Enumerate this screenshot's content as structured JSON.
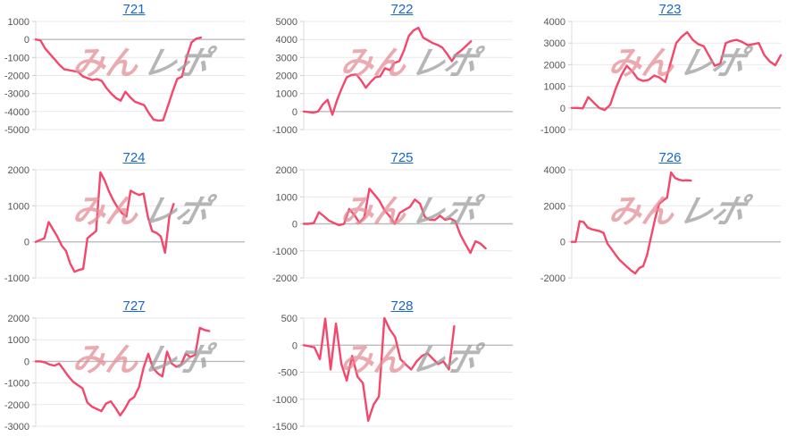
{
  "watermark": {
    "pink": "みん",
    "gray": "レポ"
  },
  "style": {
    "line_color": "#f4476c",
    "link_color": "#1766d1",
    "grid_color": "#e9e9e9",
    "zero_color": "#bbbbbb",
    "axis_color": "#dddddd",
    "tick_color": "#cccccc",
    "label_color": "#555555"
  },
  "chart_data": [
    {
      "type": "line",
      "title": "721",
      "ylim": [
        -5000,
        1000
      ],
      "ytick_step": 1000,
      "ytick_labels": [
        "1000",
        "0",
        "-1000",
        "-2000",
        "-3000",
        "-4000",
        "-5000"
      ],
      "grid": true,
      "legend": "none",
      "span": 0.79,
      "values": [
        0,
        -50,
        -500,
        -800,
        -1100,
        -1400,
        -1650,
        -1700,
        -1750,
        -1800,
        -2050,
        -2150,
        -2250,
        -2200,
        -2300,
        -2700,
        -3000,
        -3250,
        -3400,
        -2900,
        -3200,
        -3450,
        -3550,
        -3650,
        -4100,
        -4450,
        -4500,
        -4480,
        -3700,
        -2900,
        -2180,
        -2070,
        -990,
        -170,
        50,
        100
      ]
    },
    {
      "type": "line",
      "title": "722",
      "ylim": [
        -1000,
        5000
      ],
      "ytick_step": 1000,
      "ytick_labels": [
        "5000",
        "4000",
        "3000",
        "2000",
        "1000",
        "0",
        "-1000"
      ],
      "grid": true,
      "legend": "none",
      "span": 0.8,
      "values": [
        0,
        -30,
        -60,
        0,
        400,
        650,
        -175,
        650,
        1320,
        1900,
        2030,
        2060,
        1730,
        1320,
        1645,
        1900,
        1950,
        2400,
        2300,
        2700,
        2800,
        3400,
        4200,
        4500,
        4650,
        4100,
        3950,
        3800,
        3700,
        3550,
        3200,
        2800,
        3200,
        3400,
        3650,
        3900
      ]
    },
    {
      "type": "line",
      "title": "723",
      "ylim": [
        -1000,
        4000
      ],
      "ytick_step": 1000,
      "ytick_labels": [
        "4000",
        "3000",
        "2000",
        "1000",
        "0",
        "-1000"
      ],
      "grid": true,
      "legend": "none",
      "span": 1.0,
      "values": [
        0,
        0,
        -20,
        500,
        250,
        0,
        -100,
        150,
        900,
        1500,
        1950,
        1700,
        1350,
        1250,
        1300,
        1500,
        1400,
        1200,
        2100,
        3000,
        3300,
        3500,
        3150,
        2950,
        2850,
        2400,
        1950,
        2050,
        3000,
        3100,
        3150,
        3050,
        2900,
        2950,
        3000,
        2450,
        2150,
        1975,
        2440
      ]
    },
    {
      "type": "line",
      "title": "724",
      "ylim": [
        -1000,
        2000
      ],
      "ytick_step": 1000,
      "ytick_labels": [
        "2000",
        "1000",
        "0",
        "-1000"
      ],
      "grid": true,
      "legend": "none",
      "span": 0.66,
      "values": [
        0,
        50,
        100,
        550,
        350,
        150,
        -100,
        -250,
        -600,
        -830,
        -780,
        -750,
        100,
        200,
        300,
        1930,
        1700,
        1400,
        1150,
        950,
        800,
        700,
        1420,
        1350,
        1300,
        1340,
        700,
        300,
        250,
        150,
        -300,
        700,
        1050
      ]
    },
    {
      "type": "line",
      "title": "725",
      "ylim": [
        -2000,
        2000
      ],
      "ytick_step": 1000,
      "ytick_labels": [
        "2000",
        "1000",
        "0",
        "-1000",
        "-2000"
      ],
      "grid": true,
      "legend": "none",
      "span": 0.87,
      "values": [
        0,
        0,
        30,
        430,
        280,
        120,
        30,
        -50,
        0,
        550,
        330,
        50,
        250,
        1300,
        1080,
        850,
        500,
        280,
        0,
        400,
        520,
        620,
        900,
        750,
        250,
        150,
        150,
        300,
        150,
        200,
        100,
        -400,
        -750,
        -1075,
        -645,
        -730,
        -910
      ]
    },
    {
      "type": "line",
      "title": "726",
      "ylim": [
        -2000,
        4000
      ],
      "ytick_step": 2000,
      "ytick_labels": [
        "4000",
        "2000",
        "0",
        "-2000"
      ],
      "grid": true,
      "legend": "none",
      "span": 0.57,
      "values": [
        0,
        0,
        1150,
        1100,
        800,
        700,
        650,
        600,
        500,
        -100,
        -400,
        -700,
        -1000,
        -1200,
        -1400,
        -1600,
        -1750,
        -1450,
        -1350,
        -700,
        300,
        1300,
        2100,
        2300,
        2450,
        3850,
        3550,
        3450,
        3400,
        3420,
        3400
      ]
    },
    {
      "type": "line",
      "title": "727",
      "ylim": [
        -3000,
        2000
      ],
      "ytick_step": 1000,
      "ytick_labels": [
        "2000",
        "1000",
        "0",
        "-1000",
        "-2000",
        "-3000"
      ],
      "grid": true,
      "legend": "none",
      "span": 0.83,
      "values": [
        0,
        0,
        -50,
        -150,
        -200,
        -100,
        -400,
        -700,
        -950,
        -1100,
        -1250,
        -1900,
        -2100,
        -2200,
        -2300,
        -1950,
        -1850,
        -2150,
        -2500,
        -2200,
        -1800,
        -1650,
        -1200,
        -300,
        350,
        -300,
        -550,
        -700,
        450,
        -100,
        -250,
        -150,
        350,
        200,
        300,
        1550,
        1450,
        1400
      ]
    },
    {
      "type": "line",
      "title": "728",
      "ylim": [
        -1500,
        500
      ],
      "ytick_step": 500,
      "ytick_labels": [
        "500",
        "0",
        "-500",
        "-1000",
        "-1500"
      ],
      "grid": true,
      "legend": "none",
      "span": 0.72,
      "values": [
        0,
        -20,
        -40,
        -260,
        490,
        -450,
        400,
        -345,
        -655,
        -200,
        -585,
        -700,
        -1400,
        -1100,
        -950,
        500,
        290,
        150,
        -260,
        -360,
        -450,
        -300,
        -200,
        -150,
        -250,
        -350,
        -300,
        -450,
        350
      ]
    }
  ]
}
